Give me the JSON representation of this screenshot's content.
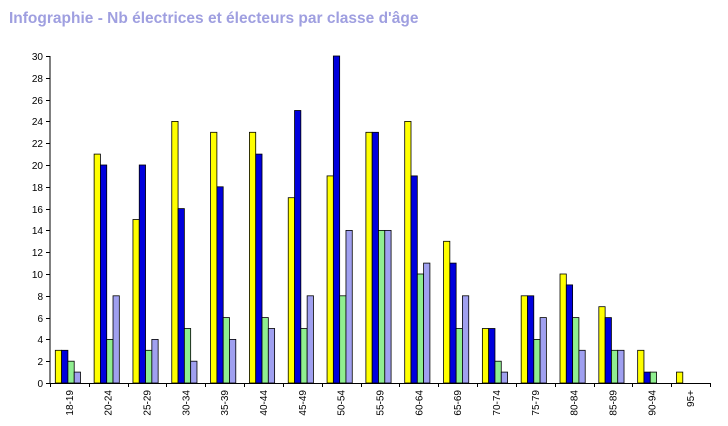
{
  "page": {
    "title": "Infographie - Nb électrices et électeurs par classe d'âge"
  },
  "chart_data": {
    "type": "bar",
    "title": "Infographie - Nb électrices et électeurs par classe d'âge",
    "xlabel": "",
    "ylabel": "",
    "ylim": [
      0,
      30
    ],
    "yticks": [
      0,
      2,
      4,
      6,
      8,
      10,
      12,
      14,
      16,
      18,
      20,
      22,
      24,
      26,
      28,
      30
    ],
    "grid": false,
    "categories": [
      "18-19",
      "20-24",
      "25-29",
      "30-34",
      "35-39",
      "40-44",
      "45-49",
      "50-54",
      "55-59",
      "60-64",
      "65-69",
      "70-74",
      "75-79",
      "80-84",
      "85-89",
      "90-94",
      "95+"
    ],
    "series": [
      {
        "color": "#ffff00",
        "values": [
          3,
          21,
          15,
          24,
          23,
          23,
          17,
          19,
          23,
          24,
          13,
          5,
          8,
          10,
          7,
          3,
          1
        ]
      },
      {
        "color": "#0000dd",
        "values": [
          3,
          20,
          20,
          16,
          18,
          21,
          25,
          30,
          23,
          19,
          11,
          5,
          8,
          9,
          6,
          1,
          0
        ]
      },
      {
        "color": "#90ee90",
        "values": [
          2,
          4,
          3,
          5,
          6,
          6,
          5,
          8,
          14,
          10,
          5,
          2,
          4,
          6,
          3,
          1,
          0
        ]
      },
      {
        "color": "#a0a0f0",
        "values": [
          1,
          8,
          4,
          2,
          4,
          5,
          8,
          14,
          14,
          11,
          8,
          1,
          6,
          3,
          3,
          0,
          0
        ]
      }
    ]
  }
}
